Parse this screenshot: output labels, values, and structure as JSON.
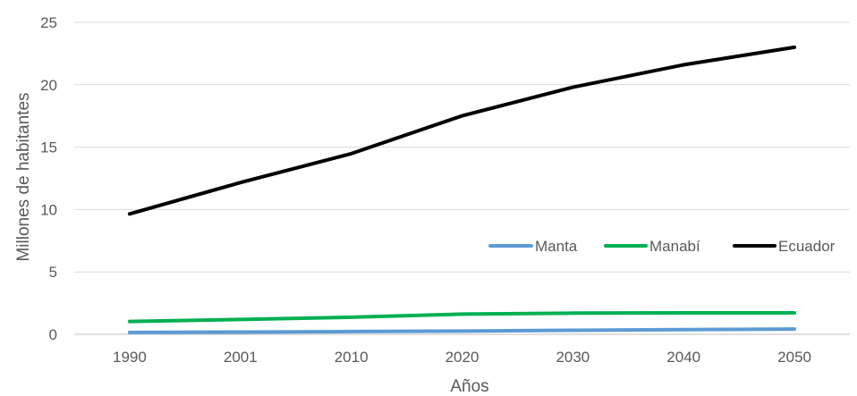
{
  "chart_data": {
    "type": "line",
    "title": "",
    "xlabel": "Años",
    "ylabel": "Millones de habitantes",
    "categories": [
      "1990",
      "2001",
      "2010",
      "2020",
      "2030",
      "2040",
      "2050"
    ],
    "yticks": [
      "0",
      "5",
      "10",
      "15",
      "20",
      "25"
    ],
    "ylim": [
      0,
      25
    ],
    "grid": true,
    "legend_position": "center-right",
    "series": [
      {
        "name": "Manta",
        "color": "#5b9bd5",
        "values": [
          0.15,
          0.18,
          0.22,
          0.26,
          0.32,
          0.38,
          0.42
        ]
      },
      {
        "name": "Manabí",
        "color": "#00b050",
        "values": [
          1.03,
          1.19,
          1.37,
          1.62,
          1.7,
          1.72,
          1.72
        ]
      },
      {
        "name": "Ecuador",
        "color": "#000000",
        "values": [
          9.65,
          12.16,
          14.48,
          17.51,
          19.8,
          21.6,
          23.0
        ]
      }
    ]
  }
}
